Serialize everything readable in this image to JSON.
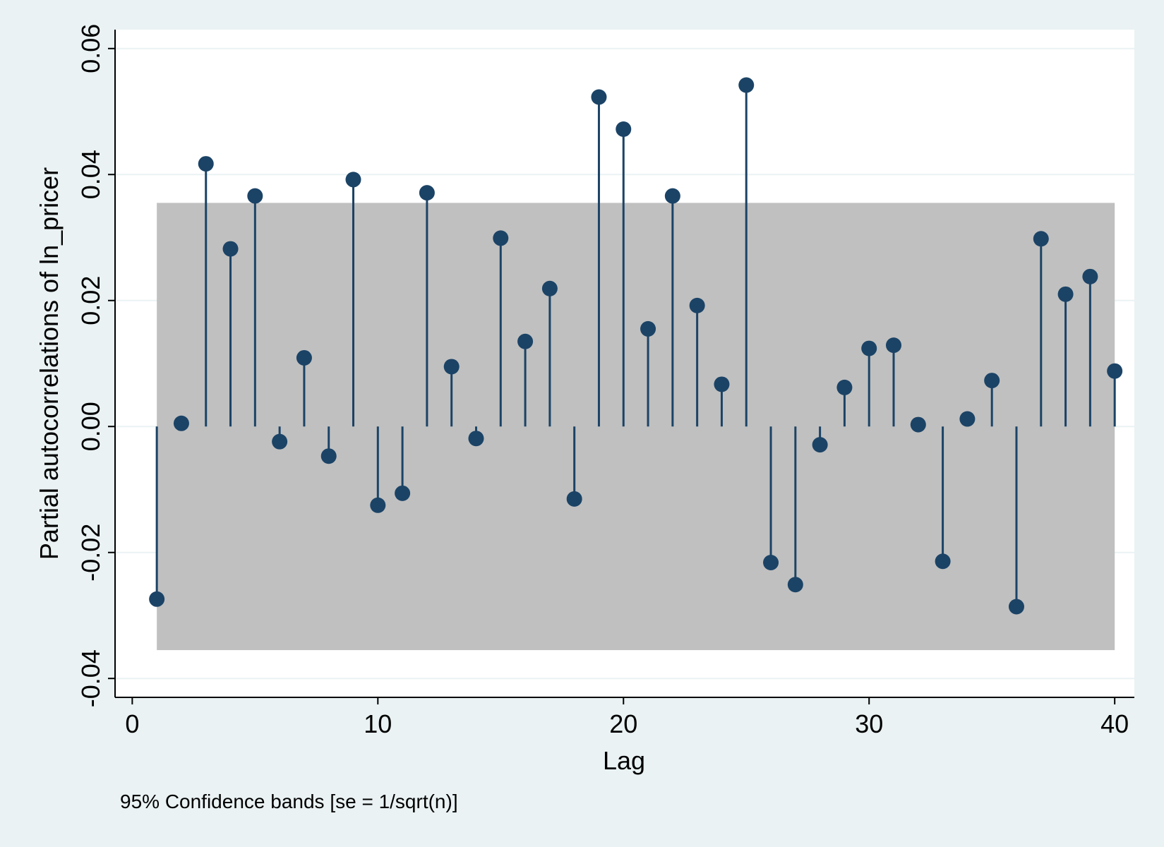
{
  "chart_data": {
    "type": "stem",
    "title": "",
    "xlabel": "Lag",
    "ylabel": "Partial autocorrelations of ln_pricer",
    "note": "95% Confidence bands [se = 1/sqrt(n)]",
    "xlim": [
      -0.7,
      40.8
    ],
    "ylim": [
      -0.043,
      0.063
    ],
    "x_ticks": [
      0,
      10,
      20,
      30,
      40
    ],
    "x_tick_labels": [
      "0",
      "10",
      "20",
      "30",
      "40"
    ],
    "y_ticks": [
      -0.04,
      -0.02,
      0.0,
      0.02,
      0.04,
      0.06
    ],
    "y_tick_labels": [
      "-0.04",
      "-0.02",
      "0.00",
      "0.02",
      "0.04",
      "0.06"
    ],
    "confidence_band": {
      "lower": -0.0355,
      "upper": 0.0355,
      "x_from": 1,
      "x_to": 40
    },
    "lags": [
      1,
      2,
      3,
      4,
      5,
      6,
      7,
      8,
      9,
      10,
      11,
      12,
      13,
      14,
      15,
      16,
      17,
      18,
      19,
      20,
      21,
      22,
      23,
      24,
      25,
      26,
      27,
      28,
      29,
      30,
      31,
      32,
      33,
      34,
      35,
      36,
      37,
      38,
      39,
      40
    ],
    "values": [
      -0.0274,
      0.0005,
      0.0417,
      0.0282,
      0.0366,
      -0.0024,
      0.0109,
      -0.0047,
      0.0392,
      -0.0125,
      -0.0106,
      0.0371,
      0.0095,
      -0.0019,
      0.0299,
      0.0135,
      0.0219,
      -0.0115,
      0.0523,
      0.0472,
      0.0155,
      0.0366,
      0.0192,
      0.0067,
      0.0542,
      -0.0216,
      -0.0251,
      -0.0029,
      0.0062,
      0.0124,
      0.0129,
      0.0003,
      -0.0214,
      0.0012,
      0.0073,
      -0.0286,
      0.0298,
      0.021,
      0.0238,
      0.0088
    ],
    "colors": {
      "marker": "#1b4366",
      "band": "#c0c0c0",
      "plot_bg": "#ffffff",
      "page_bg": "#eaf2f3",
      "grid": "#eaf2f3"
    }
  }
}
